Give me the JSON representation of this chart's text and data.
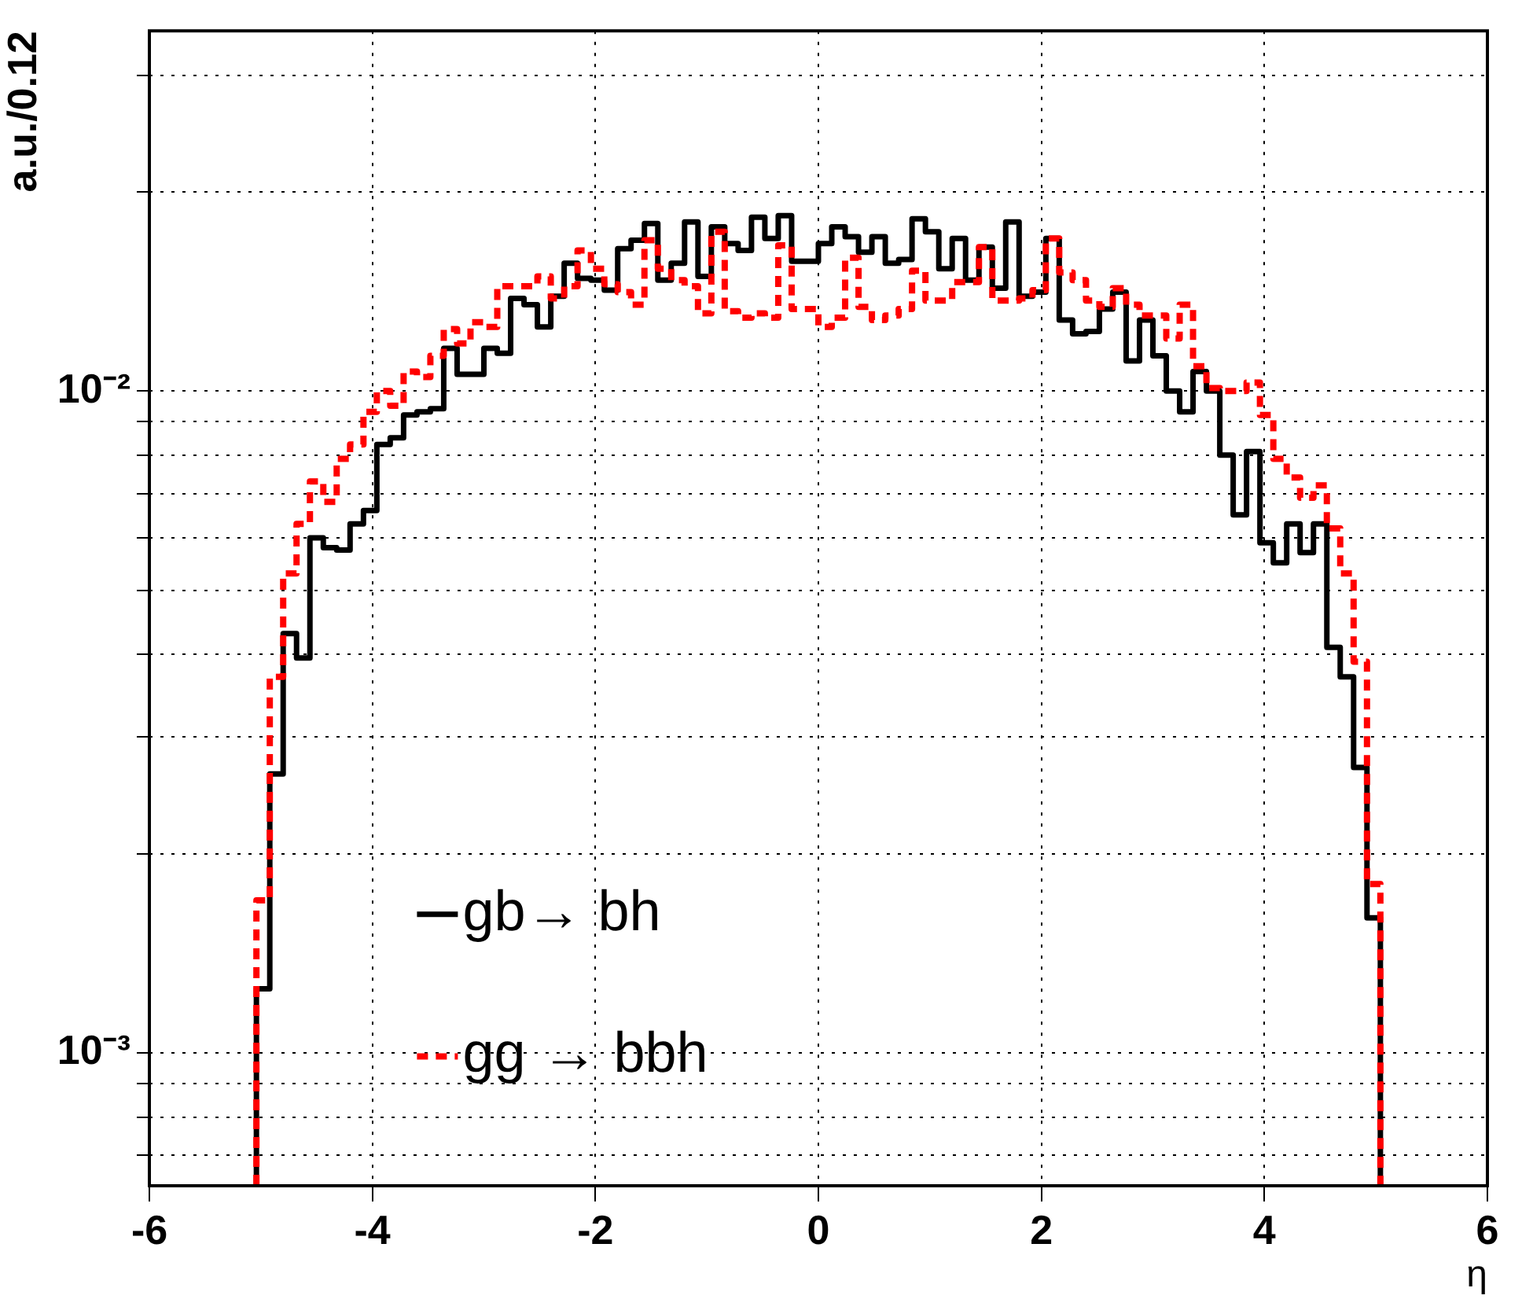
{
  "chart_data": {
    "type": "histogram",
    "xlabel": "η",
    "ylabel": "a.u./0.12",
    "bins": [
      -5.04,
      -4.92,
      -4.8,
      -4.68,
      -4.56,
      -4.44,
      -4.32,
      -4.2,
      -4.08,
      -3.96,
      -3.84,
      -3.72,
      -3.6,
      -3.48,
      -3.36,
      -3.24,
      -3.12,
      -3,
      -2.88,
      -2.76,
      -2.64,
      -2.52,
      -2.4,
      -2.28,
      -2.16,
      -2.04,
      -1.92,
      -1.8,
      -1.68,
      -1.56,
      -1.44,
      -1.32,
      -1.2,
      -1.08,
      -0.96,
      -0.84,
      -0.72,
      -0.6,
      -0.48,
      -0.36,
      -0.24,
      -0.12,
      0,
      0.12,
      0.24,
      0.36,
      0.48,
      0.6,
      0.72,
      0.84,
      0.96,
      1.08,
      1.2,
      1.32,
      1.44,
      1.56,
      1.68,
      1.8,
      1.92,
      2.04,
      2.16,
      2.28,
      2.4,
      2.52,
      2.64,
      2.76,
      2.88,
      3,
      3.12,
      3.24,
      3.36,
      3.48,
      3.6,
      3.72,
      3.84,
      3.96,
      4.08,
      4.2,
      4.32,
      4.44,
      4.56,
      4.68,
      4.8,
      4.92,
      5.04
    ],
    "series": [
      {
        "name": "gb→ bh",
        "color": "#000000",
        "line_style": "solid",
        "values": [
          0.00125,
          0.00264,
          0.0043,
          0.00395,
          0.006,
          0.0058,
          0.00575,
          0.0063,
          0.0066,
          0.0083,
          0.0085,
          0.0092,
          0.0093,
          0.0094,
          0.0116,
          0.0106,
          0.0106,
          0.0116,
          0.0114,
          0.0138,
          0.0135,
          0.0125,
          0.0139,
          0.0156,
          0.0148,
          0.0147,
          0.0142,
          0.0164,
          0.0169,
          0.0179,
          0.0147,
          0.0156,
          0.018,
          0.0149,
          0.0177,
          0.0167,
          0.0163,
          0.0183,
          0.017,
          0.0184,
          0.0157,
          0.0157,
          0.0167,
          0.0177,
          0.0171,
          0.0162,
          0.0171,
          0.0156,
          0.0158,
          0.0182,
          0.0174,
          0.0153,
          0.017,
          0.0147,
          0.0165,
          0.0143,
          0.018,
          0.0139,
          0.0141,
          0.017,
          0.0128,
          0.0122,
          0.0123,
          0.0133,
          0.0141,
          0.0111,
          0.0128,
          0.0113,
          0.01,
          0.0093,
          0.0107,
          0.01,
          0.008,
          0.0065,
          0.0081,
          0.0059,
          0.0055,
          0.0063,
          0.0057,
          0.0063,
          0.0041,
          0.0037,
          0.0027,
          0.0016
        ]
      },
      {
        "name": "gg → bbh",
        "color": "#ff0000",
        "line_style": "dashed",
        "values": [
          0.0017,
          0.0037,
          0.0053,
          0.0063,
          0.0073,
          0.0068,
          0.0079,
          0.0083,
          0.0093,
          0.01,
          0.0095,
          0.0107,
          0.0105,
          0.0113,
          0.0124,
          0.0118,
          0.0127,
          0.0125,
          0.0144,
          0.0144,
          0.0144,
          0.0149,
          0.0138,
          0.0144,
          0.0163,
          0.0153,
          0.0145,
          0.0141,
          0.0135,
          0.0169,
          0.0153,
          0.0147,
          0.0144,
          0.0131,
          0.0174,
          0.0132,
          0.0129,
          0.0131,
          0.0129,
          0.0166,
          0.0133,
          0.0133,
          0.0125,
          0.0129,
          0.0159,
          0.0134,
          0.0128,
          0.013,
          0.0133,
          0.0152,
          0.0137,
          0.0137,
          0.0146,
          0.0146,
          0.0165,
          0.0137,
          0.0137,
          0.0138,
          0.0142,
          0.017,
          0.0151,
          0.0147,
          0.0137,
          0.0134,
          0.0143,
          0.0135,
          0.013,
          0.013,
          0.012,
          0.0135,
          0.0109,
          0.0101,
          0.01,
          0.01,
          0.0103,
          0.0092,
          0.0079,
          0.0074,
          0.0069,
          0.0072,
          0.0062,
          0.0053,
          0.0039,
          0.0018
        ]
      }
    ],
    "xlim": [
      -6,
      6
    ],
    "xticks": [
      -6,
      -4,
      -2,
      0,
      2,
      4,
      6
    ],
    "ylim": [
      0.00063,
      0.035
    ],
    "yticks": [
      {
        "value": 0.0007,
        "label": null
      },
      {
        "value": 0.0008,
        "label": null
      },
      {
        "value": 0.0009,
        "label": null
      },
      {
        "value": 0.001,
        "label": "10⁻³"
      },
      {
        "value": 0.002,
        "label": null
      },
      {
        "value": 0.003,
        "label": null
      },
      {
        "value": 0.004,
        "label": null
      },
      {
        "value": 0.005,
        "label": null
      },
      {
        "value": 0.006,
        "label": null
      },
      {
        "value": 0.007,
        "label": null
      },
      {
        "value": 0.008,
        "label": null
      },
      {
        "value": 0.009,
        "label": null
      },
      {
        "value": 0.01,
        "label": "10⁻²"
      },
      {
        "value": 0.02,
        "label": null
      },
      {
        "value": 0.03,
        "label": null
      }
    ],
    "log": "y",
    "grid": true,
    "legend": "bottom"
  }
}
